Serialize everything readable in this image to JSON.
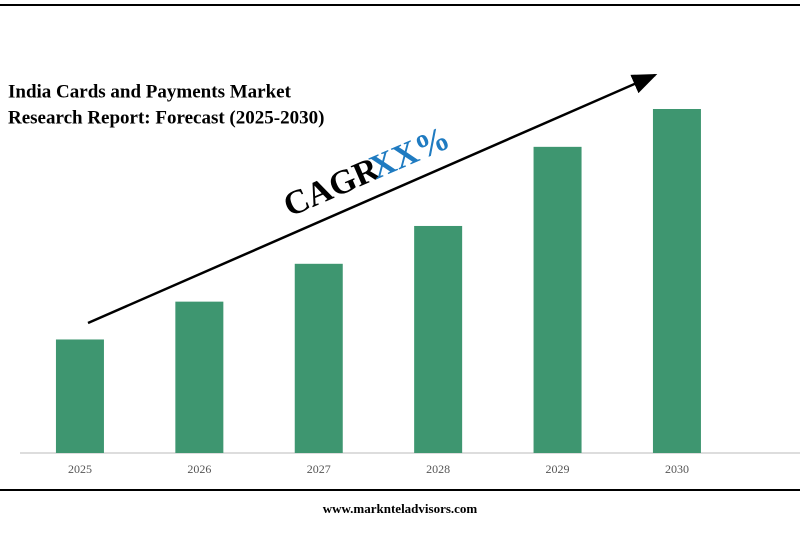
{
  "chart_data": {
    "type": "bar",
    "title": [
      "India Cards and Payments Market",
      "Research Report: Forecast (2025-2030)"
    ],
    "annotation": {
      "text": "CAGR",
      "highlight": "XX%",
      "highlight_color": "#1f7bc1"
    },
    "categories": [
      "2025",
      "2026",
      "2027",
      "2028",
      "2029",
      "2030"
    ],
    "values": [
      33,
      44,
      55,
      66,
      89,
      100
    ],
    "color": "#3e9670",
    "ylim": [
      0,
      100
    ]
  },
  "footer": "www.marknteladvisors.com"
}
